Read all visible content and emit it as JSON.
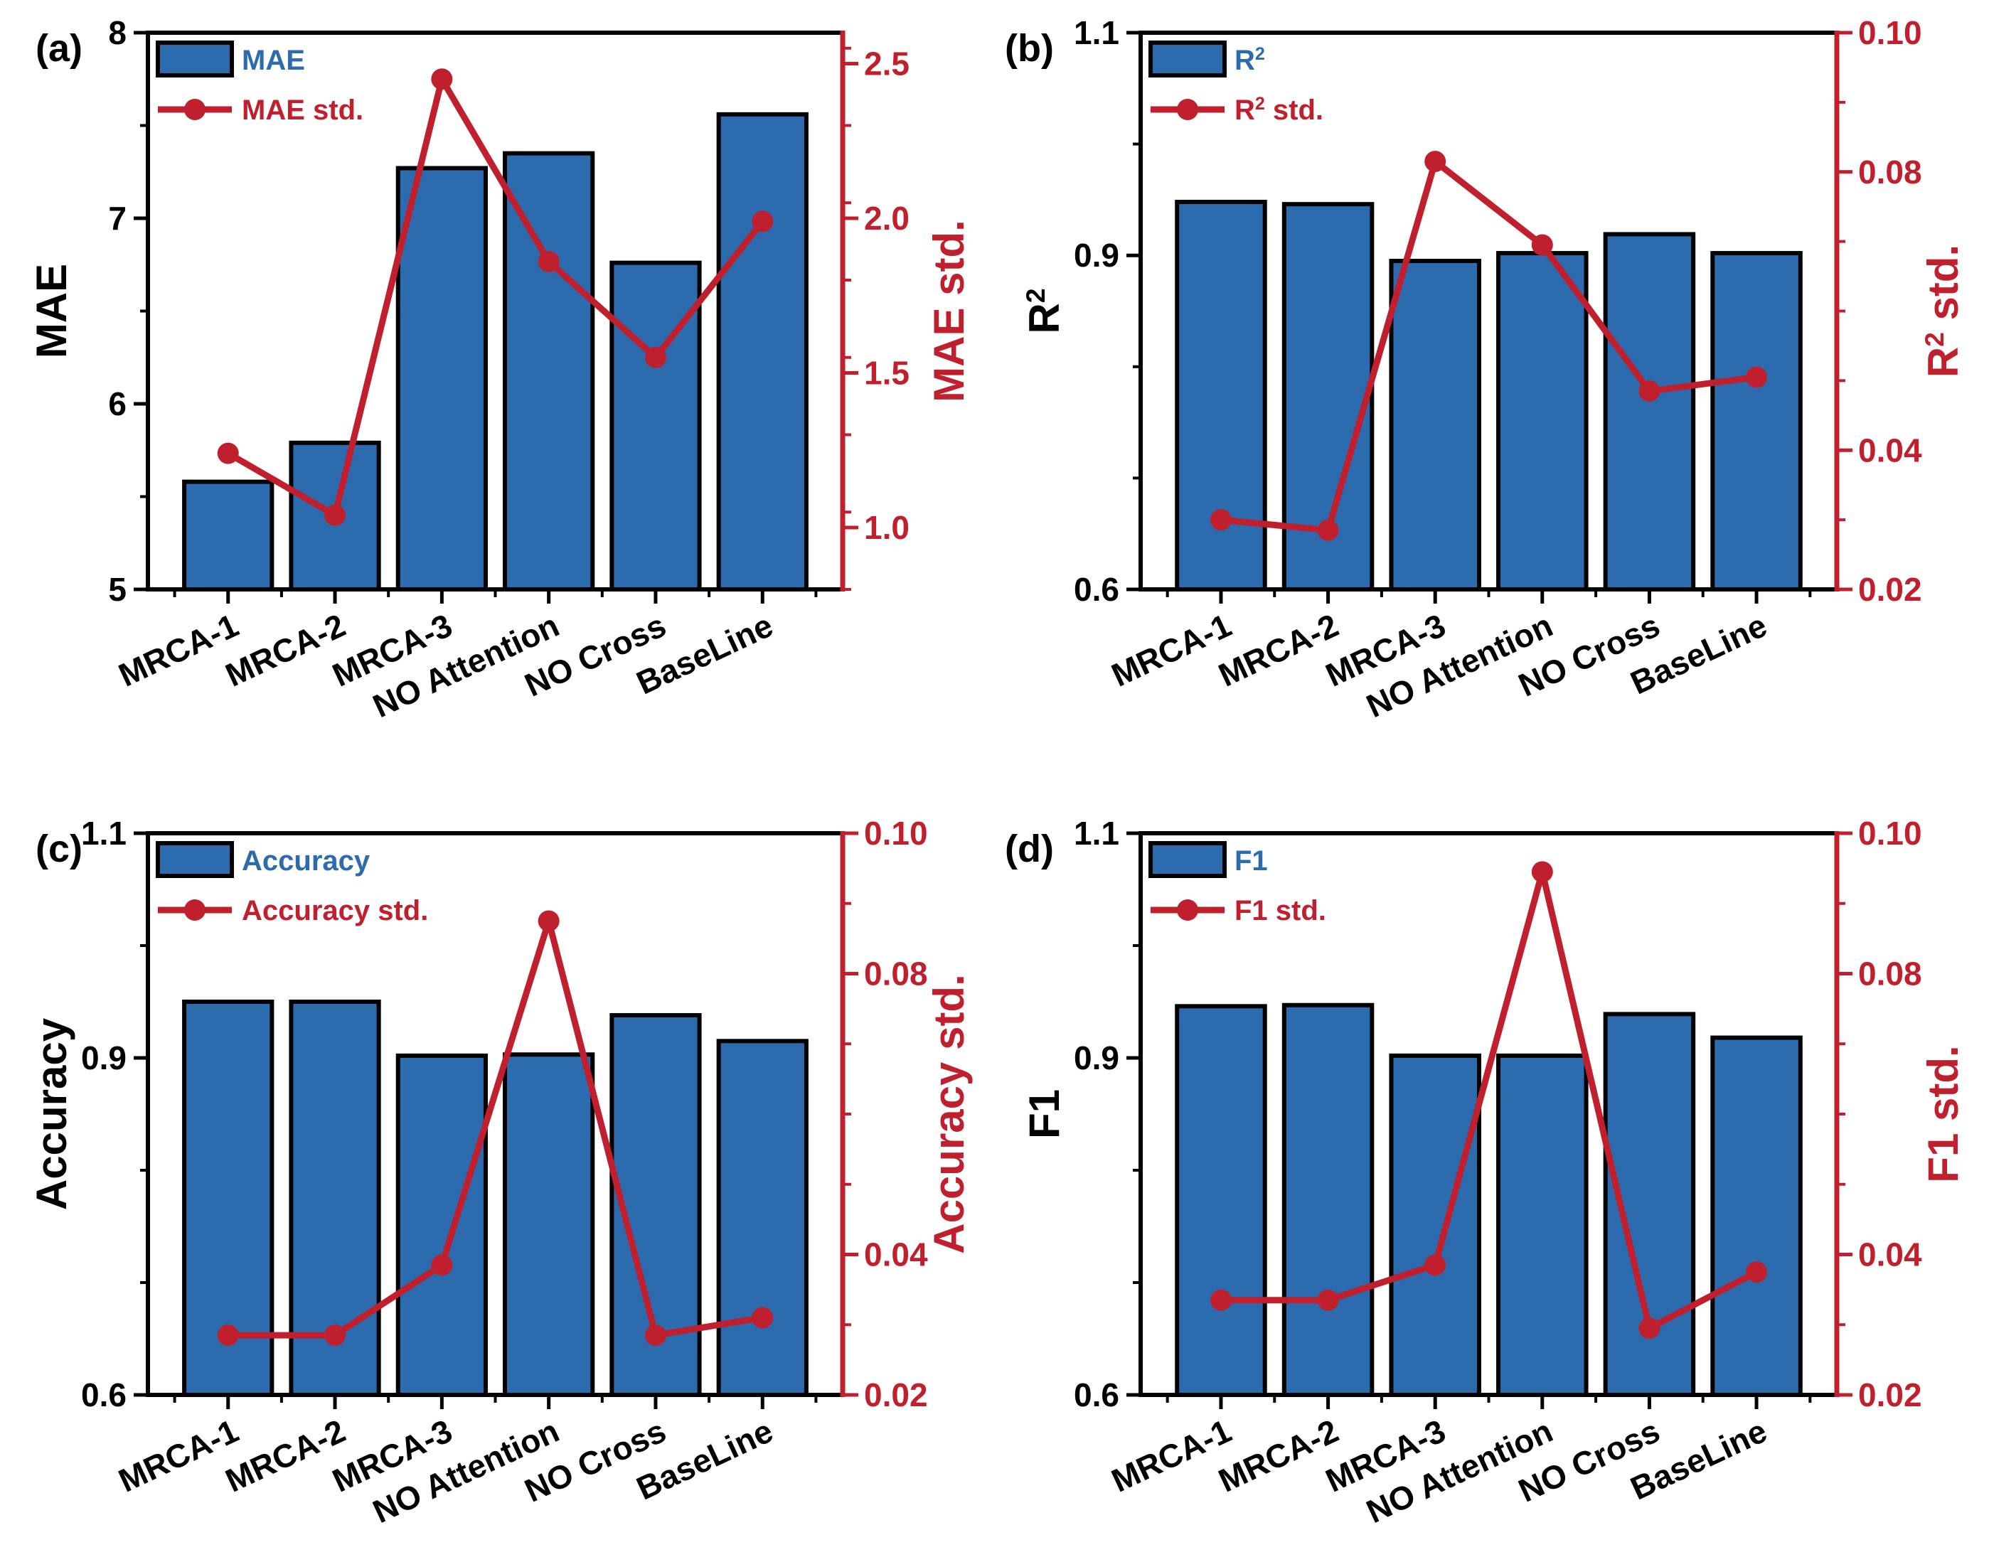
{
  "colors": {
    "bar": "#2c6cae",
    "line": "#c0202e",
    "axis": "#000000",
    "legend_bar_text": "#2c6cae",
    "legend_line_text": "#c0202e"
  },
  "categories": [
    "MRCA-1",
    "MRCA-2",
    "MRCA-3",
    "NO Attention",
    "NO Cross",
    "BaseLine"
  ],
  "chart_data": [
    {
      "type": "bar",
      "panel_label": "(a)",
      "title": "",
      "xlabel": "",
      "ylabel": "MAE",
      "ylabel_sup": "",
      "y2label": "MAE std.",
      "y2label_sup": "",
      "legend": {
        "bar": "MAE",
        "bar_sup": "",
        "line": "MAE std.",
        "line_sup": ""
      },
      "legend_position": "top-left",
      "categories": [
        "MRCA-1",
        "MRCA-2",
        "MRCA-3",
        "NO Attention",
        "NO Cross",
        "BaseLine"
      ],
      "ylim": [
        5,
        8
      ],
      "yticks": [
        5,
        6,
        7,
        8
      ],
      "ytick_labels": [
        "5",
        "6",
        "7",
        "8"
      ],
      "y2lim": [
        0.8,
        2.6
      ],
      "y2ticks": [
        1.0,
        1.5,
        2.0,
        2.5
      ],
      "y2tick_labels": [
        "1.0",
        "1.5",
        "2.0",
        "2.5"
      ],
      "series": [
        {
          "name": "MAE",
          "kind": "bar",
          "values": [
            5.58,
            5.79,
            7.27,
            7.35,
            6.76,
            7.56
          ]
        },
        {
          "name": "MAE std.",
          "kind": "line",
          "axis": "right",
          "values": [
            1.24,
            1.04,
            2.45,
            1.86,
            1.55,
            1.99
          ]
        }
      ]
    },
    {
      "type": "bar",
      "panel_label": "(b)",
      "title": "",
      "xlabel": "",
      "ylabel": "R",
      "ylabel_sup": "2",
      "y2label": "R",
      "y2label_sup": "2",
      "y2label_suffix": " std.",
      "legend": {
        "bar": "R",
        "bar_sup": "2",
        "line": "R",
        "line_sup": "2",
        "line_suffix": " std."
      },
      "legend_position": "top-left",
      "categories": [
        "MRCA-1",
        "MRCA-2",
        "MRCA-3",
        "NO Attention",
        "NO Cross",
        "BaseLine"
      ],
      "ylim": [
        0.6,
        1.1
      ],
      "yticks": [
        0.6,
        0.9,
        1.1
      ],
      "ytick_labels": [
        "0.6",
        "0.9",
        "1.1"
      ],
      "y2lim": [
        0.02,
        0.1
      ],
      "y2ticks": [
        0.02,
        0.04,
        0.08,
        0.1
      ],
      "y2tick_labels": [
        "0.02",
        "0.04",
        "0.08",
        "0.10"
      ],
      "series": [
        {
          "name": "R2",
          "kind": "bar",
          "values": [
            0.948,
            0.946,
            0.895,
            0.902,
            0.919,
            0.902
          ]
        },
        {
          "name": "R2 std.",
          "kind": "line",
          "axis": "right",
          "values": [
            0.03,
            0.0285,
            0.0815,
            0.0695,
            0.0485,
            0.0505
          ]
        }
      ]
    },
    {
      "type": "bar",
      "panel_label": "(c)",
      "title": "",
      "xlabel": "",
      "ylabel": "Accuracy",
      "ylabel_sup": "",
      "y2label": "Accuracy std.",
      "y2label_sup": "",
      "legend": {
        "bar": "Accuracy",
        "bar_sup": "",
        "line": "Accuracy std.",
        "line_sup": ""
      },
      "legend_position": "top-left",
      "categories": [
        "MRCA-1",
        "MRCA-2",
        "MRCA-3",
        "NO Attention",
        "NO Cross",
        "BaseLine"
      ],
      "ylim": [
        0.6,
        1.1
      ],
      "yticks": [
        0.6,
        0.9,
        1.1
      ],
      "ytick_labels": [
        "0.6",
        "0.9",
        "1.1"
      ],
      "y2lim": [
        0.02,
        0.1
      ],
      "y2ticks": [
        0.02,
        0.04,
        0.08,
        0.1
      ],
      "y2tick_labels": [
        "0.02",
        "0.04",
        "0.08",
        "0.10"
      ],
      "series": [
        {
          "name": "Accuracy",
          "kind": "bar",
          "values": [
            0.95,
            0.95,
            0.902,
            0.903,
            0.938,
            0.915
          ]
        },
        {
          "name": "Accuracy std.",
          "kind": "line",
          "axis": "right",
          "values": [
            0.0285,
            0.0285,
            0.0385,
            0.0875,
            0.0285,
            0.031
          ]
        }
      ]
    },
    {
      "type": "bar",
      "panel_label": "(d)",
      "title": "",
      "xlabel": "",
      "ylabel": "F1",
      "ylabel_sup": "",
      "y2label": "F1 std.",
      "y2label_sup": "",
      "legend": {
        "bar": "F1",
        "bar_sup": "",
        "line": "F1 std.",
        "line_sup": ""
      },
      "legend_position": "top-left",
      "categories": [
        "MRCA-1",
        "MRCA-2",
        "MRCA-3",
        "NO Attention",
        "NO Cross",
        "BaseLine"
      ],
      "ylim": [
        0.6,
        1.1
      ],
      "yticks": [
        0.6,
        0.9,
        1.1
      ],
      "ytick_labels": [
        "0.6",
        "0.9",
        "1.1"
      ],
      "y2lim": [
        0.02,
        0.1
      ],
      "y2ticks": [
        0.02,
        0.04,
        0.08,
        0.1
      ],
      "y2tick_labels": [
        "0.02",
        "0.04",
        "0.08",
        "0.10"
      ],
      "series": [
        {
          "name": "F1",
          "kind": "bar",
          "values": [
            0.946,
            0.947,
            0.902,
            0.902,
            0.939,
            0.918
          ]
        },
        {
          "name": "F1 std.",
          "kind": "line",
          "axis": "right",
          "values": [
            0.0335,
            0.0335,
            0.0385,
            0.0945,
            0.0295,
            0.0375
          ]
        }
      ]
    }
  ]
}
